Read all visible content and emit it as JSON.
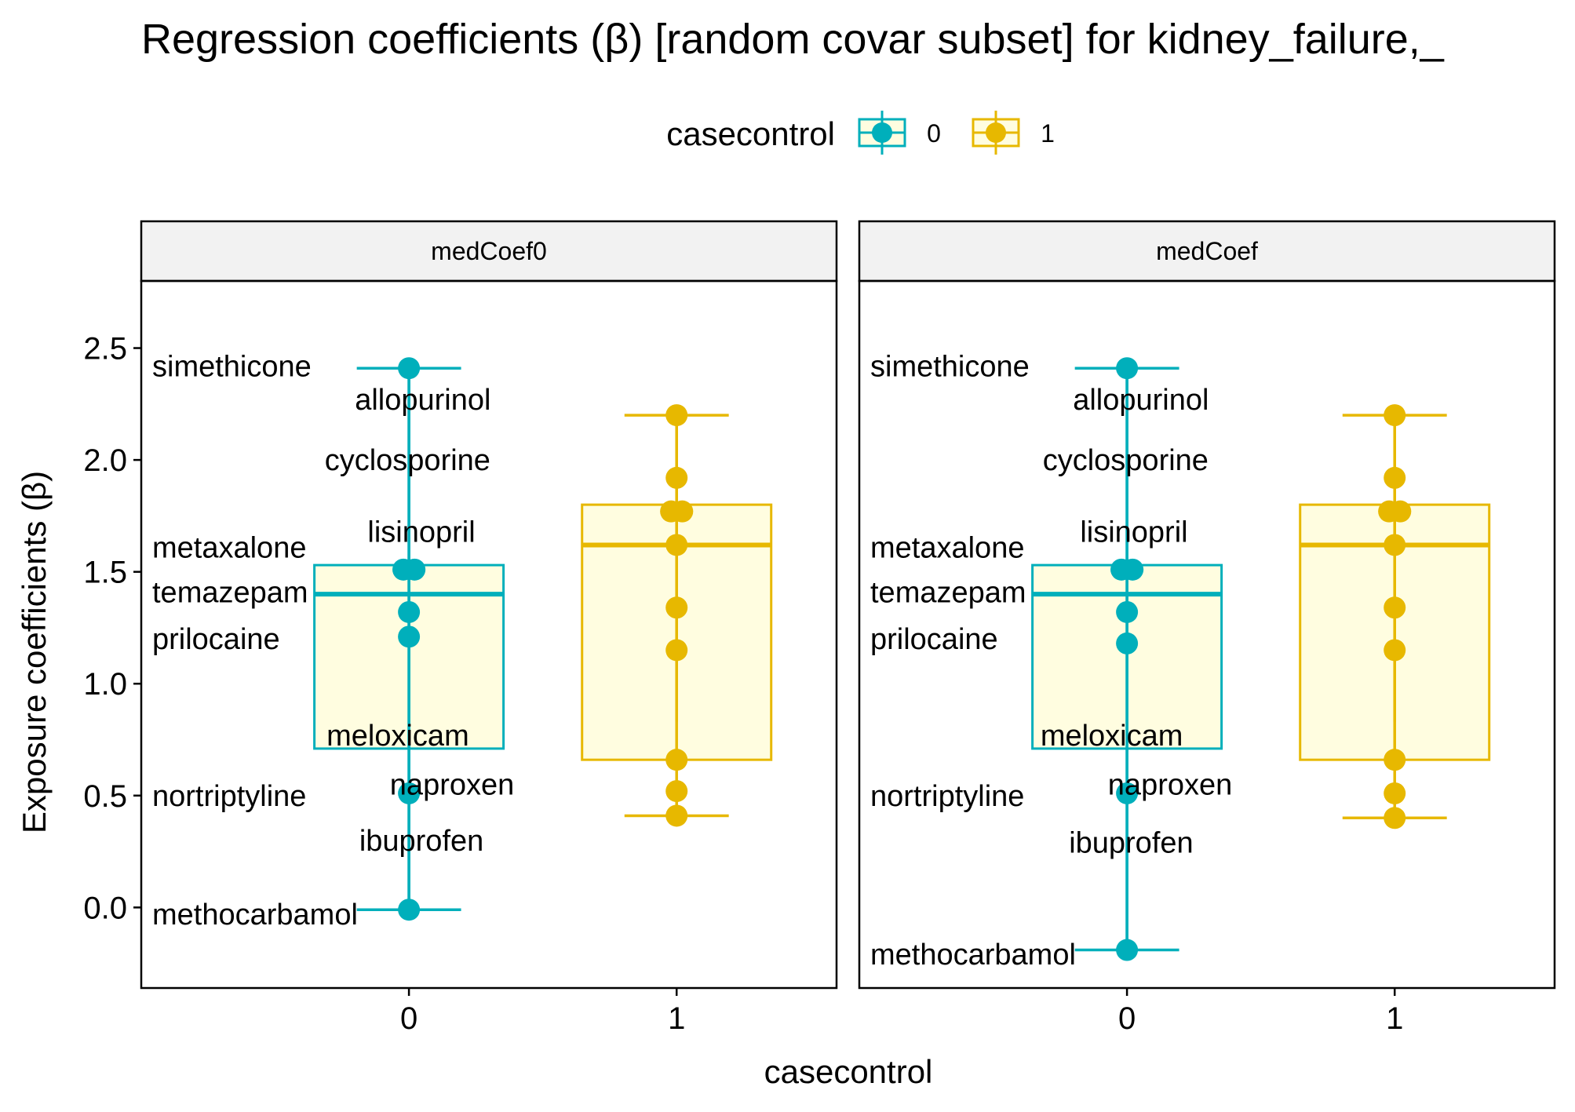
{
  "chart_data": {
    "type": "boxplot",
    "title": "Regression coefficients (β) [random covar subset]  for kidney_failure,_",
    "xlabel": "casecontrol",
    "ylabel": "Exposure coefficients (β)",
    "ylim": [
      -0.36,
      2.8
    ],
    "yticks": [
      0.0,
      0.5,
      1.0,
      1.5,
      2.0,
      2.5
    ],
    "ytick_labels": [
      "0.0",
      "0.5",
      "1.0",
      "1.5",
      "2.0",
      "2.5"
    ],
    "categories": [
      "0",
      "1"
    ],
    "grid": false,
    "legend": {
      "title": "casecontrol",
      "position": "top",
      "entries": [
        {
          "label": "0",
          "color": "#00AFBB"
        },
        {
          "label": "1",
          "color": "#E7B800"
        }
      ]
    },
    "colors": {
      "0": "#00AFBB",
      "1": "#E7B800",
      "box_fill": "#FFFDE0"
    },
    "facets": [
      {
        "label": "medCoef0",
        "groups": [
          {
            "category": "0",
            "box": {
              "q1": 0.71,
              "median": 1.4,
              "q3": 1.53
            },
            "whisker": [
              -0.01,
              2.41
            ],
            "errorbar": [
              -0.01,
              2.41
            ],
            "points": [
              {
                "y": 2.41,
                "dx": 0
              },
              {
                "y": 1.51,
                "dx": -0.04
              },
              {
                "y": 1.51,
                "dx": 0.04
              },
              {
                "y": 1.32,
                "dx": 0
              },
              {
                "y": 1.21,
                "dx": 0
              },
              {
                "y": 0.51,
                "dx": 0
              },
              {
                "y": -0.01,
                "dx": 0
              }
            ]
          },
          {
            "category": "1",
            "box": {
              "q1": 0.66,
              "median": 1.62,
              "q3": 1.8
            },
            "whisker": [
              0.83,
              2.2
            ],
            "errorbar": [
              0.41,
              2.2
            ],
            "points": [
              {
                "y": 2.2,
                "dx": 0
              },
              {
                "y": 1.92,
                "dx": 0
              },
              {
                "y": 1.77,
                "dx": -0.04
              },
              {
                "y": 1.77,
                "dx": 0.04
              },
              {
                "y": 1.62,
                "dx": 0
              },
              {
                "y": 1.34,
                "dx": 0
              },
              {
                "y": 1.15,
                "dx": 0
              },
              {
                "y": 0.66,
                "dx": 0
              },
              {
                "y": 0.52,
                "dx": 0
              },
              {
                "y": 0.41,
                "dx": 0
              }
            ]
          }
        ],
        "labels": [
          {
            "text": "simethicone",
            "x": -0.95,
            "y": 2.42,
            "anchor": "start"
          },
          {
            "text": "allopurinol",
            "x": 0.1,
            "y": 2.27,
            "anchor": "middle"
          },
          {
            "text": "cyclosporine",
            "x": -0.01,
            "y": 2.0,
            "anchor": "middle"
          },
          {
            "text": "lisinopril",
            "x": 0.09,
            "y": 1.68,
            "anchor": "middle"
          },
          {
            "text": "metaxalone",
            "x": -0.95,
            "y": 1.61,
            "anchor": "start"
          },
          {
            "text": "temazepam",
            "x": -0.95,
            "y": 1.41,
            "anchor": "start"
          },
          {
            "text": "prilocaine",
            "x": -0.95,
            "y": 1.2,
            "anchor": "start"
          },
          {
            "text": "meloxicam",
            "x": -0.08,
            "y": 0.77,
            "anchor": "middle"
          },
          {
            "text": "naproxen",
            "x": 0.31,
            "y": 0.55,
            "anchor": "middle"
          },
          {
            "text": "nortriptyline",
            "x": -0.95,
            "y": 0.5,
            "anchor": "start"
          },
          {
            "text": "ibuprofen",
            "x": 0.09,
            "y": 0.3,
            "anchor": "middle"
          },
          {
            "text": "methocarbamol",
            "x": -0.95,
            "y": -0.03,
            "anchor": "start"
          }
        ]
      },
      {
        "label": "medCoef",
        "groups": [
          {
            "category": "0",
            "box": {
              "q1": 0.71,
              "median": 1.4,
              "q3": 1.53
            },
            "whisker": [
              -0.19,
              2.41
            ],
            "errorbar": [
              -0.19,
              2.41
            ],
            "points": [
              {
                "y": 2.41,
                "dx": 0
              },
              {
                "y": 1.51,
                "dx": -0.04
              },
              {
                "y": 1.51,
                "dx": 0.04
              },
              {
                "y": 1.32,
                "dx": 0
              },
              {
                "y": 1.18,
                "dx": 0
              },
              {
                "y": 0.51,
                "dx": 0
              },
              {
                "y": -0.19,
                "dx": 0
              }
            ]
          },
          {
            "category": "1",
            "box": {
              "q1": 0.66,
              "median": 1.62,
              "q3": 1.8
            },
            "whisker": [
              0.83,
              2.2
            ],
            "errorbar": [
              0.4,
              2.2
            ],
            "points": [
              {
                "y": 2.2,
                "dx": 0
              },
              {
                "y": 1.92,
                "dx": 0
              },
              {
                "y": 1.77,
                "dx": -0.04
              },
              {
                "y": 1.77,
                "dx": 0.04
              },
              {
                "y": 1.62,
                "dx": 0
              },
              {
                "y": 1.34,
                "dx": 0
              },
              {
                "y": 1.15,
                "dx": 0
              },
              {
                "y": 0.66,
                "dx": 0
              },
              {
                "y": 0.51,
                "dx": 0
              },
              {
                "y": 0.4,
                "dx": 0
              }
            ]
          }
        ],
        "labels": [
          {
            "text": "simethicone",
            "x": -0.95,
            "y": 2.42,
            "anchor": "start"
          },
          {
            "text": "allopurinol",
            "x": 0.1,
            "y": 2.27,
            "anchor": "middle"
          },
          {
            "text": "cyclosporine",
            "x": -0.01,
            "y": 2.0,
            "anchor": "middle"
          },
          {
            "text": "lisinopril",
            "x": 0.05,
            "y": 1.68,
            "anchor": "middle"
          },
          {
            "text": "metaxalone",
            "x": -0.95,
            "y": 1.61,
            "anchor": "start"
          },
          {
            "text": "temazepam",
            "x": -0.95,
            "y": 1.41,
            "anchor": "start"
          },
          {
            "text": "prilocaine",
            "x": -0.95,
            "y": 1.2,
            "anchor": "start"
          },
          {
            "text": "meloxicam",
            "x": -0.11,
            "y": 0.77,
            "anchor": "middle"
          },
          {
            "text": "naproxen",
            "x": 0.31,
            "y": 0.55,
            "anchor": "middle"
          },
          {
            "text": "nortriptyline",
            "x": -0.95,
            "y": 0.5,
            "anchor": "start"
          },
          {
            "text": "ibuprofen",
            "x": 0.03,
            "y": 0.29,
            "anchor": "middle"
          },
          {
            "text": "methocarbamol",
            "x": -0.95,
            "y": -0.21,
            "anchor": "start"
          }
        ]
      }
    ]
  }
}
